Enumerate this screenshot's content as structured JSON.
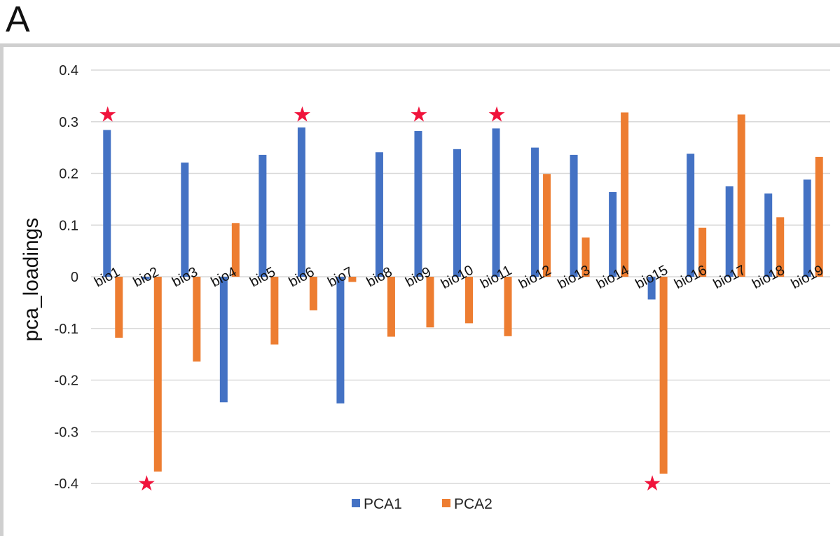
{
  "panel_label": "A",
  "chart_data": {
    "type": "bar",
    "title": "",
    "xlabel": "",
    "ylabel": "pca_loadings",
    "ylim": [
      -0.4,
      0.4
    ],
    "yticks": [
      "0.4",
      "0.3",
      "0.2",
      "0.1",
      "0",
      "-0.1",
      "-0.2",
      "-0.3",
      "-0.4"
    ],
    "grid": true,
    "legend_position": "bottom",
    "categories": [
      "bio1",
      "bio2",
      "bio3",
      "bio4",
      "bio5",
      "bio6",
      "bio7",
      "bio8",
      "bio9",
      "bio10",
      "bio11",
      "bio12",
      "bio13",
      "bio14",
      "bio15",
      "bio16",
      "bio17",
      "bio18",
      "bio19"
    ],
    "series": [
      {
        "name": "PCA1",
        "color": "#4472c4",
        "values": [
          0.284,
          -0.005,
          0.221,
          -0.243,
          0.236,
          0.289,
          -0.245,
          0.241,
          0.282,
          0.247,
          0.287,
          0.25,
          0.236,
          0.164,
          -0.044,
          0.238,
          0.175,
          0.161,
          0.188
        ]
      },
      {
        "name": "PCA2",
        "color": "#ed7d31",
        "values": [
          -0.118,
          -0.377,
          -0.164,
          0.104,
          -0.131,
          -0.065,
          -0.01,
          -0.116,
          -0.098,
          -0.09,
          -0.115,
          0.199,
          0.076,
          0.318,
          -0.381,
          0.095,
          0.314,
          0.115,
          0.232
        ]
      }
    ],
    "annotations": [
      {
        "symbol": "★",
        "category": "bio1",
        "value": 0.314,
        "color": "#f0143c"
      },
      {
        "symbol": "★",
        "category": "bio2",
        "value": -0.4,
        "color": "#f0143c"
      },
      {
        "symbol": "★",
        "category": "bio6",
        "value": 0.314,
        "color": "#f0143c"
      },
      {
        "symbol": "★",
        "category": "bio9",
        "value": 0.314,
        "color": "#f0143c"
      },
      {
        "symbol": "★",
        "category": "bio11",
        "value": 0.314,
        "color": "#f0143c"
      },
      {
        "symbol": "★",
        "category": "bio15",
        "value": -0.4,
        "color": "#f0143c"
      }
    ]
  }
}
